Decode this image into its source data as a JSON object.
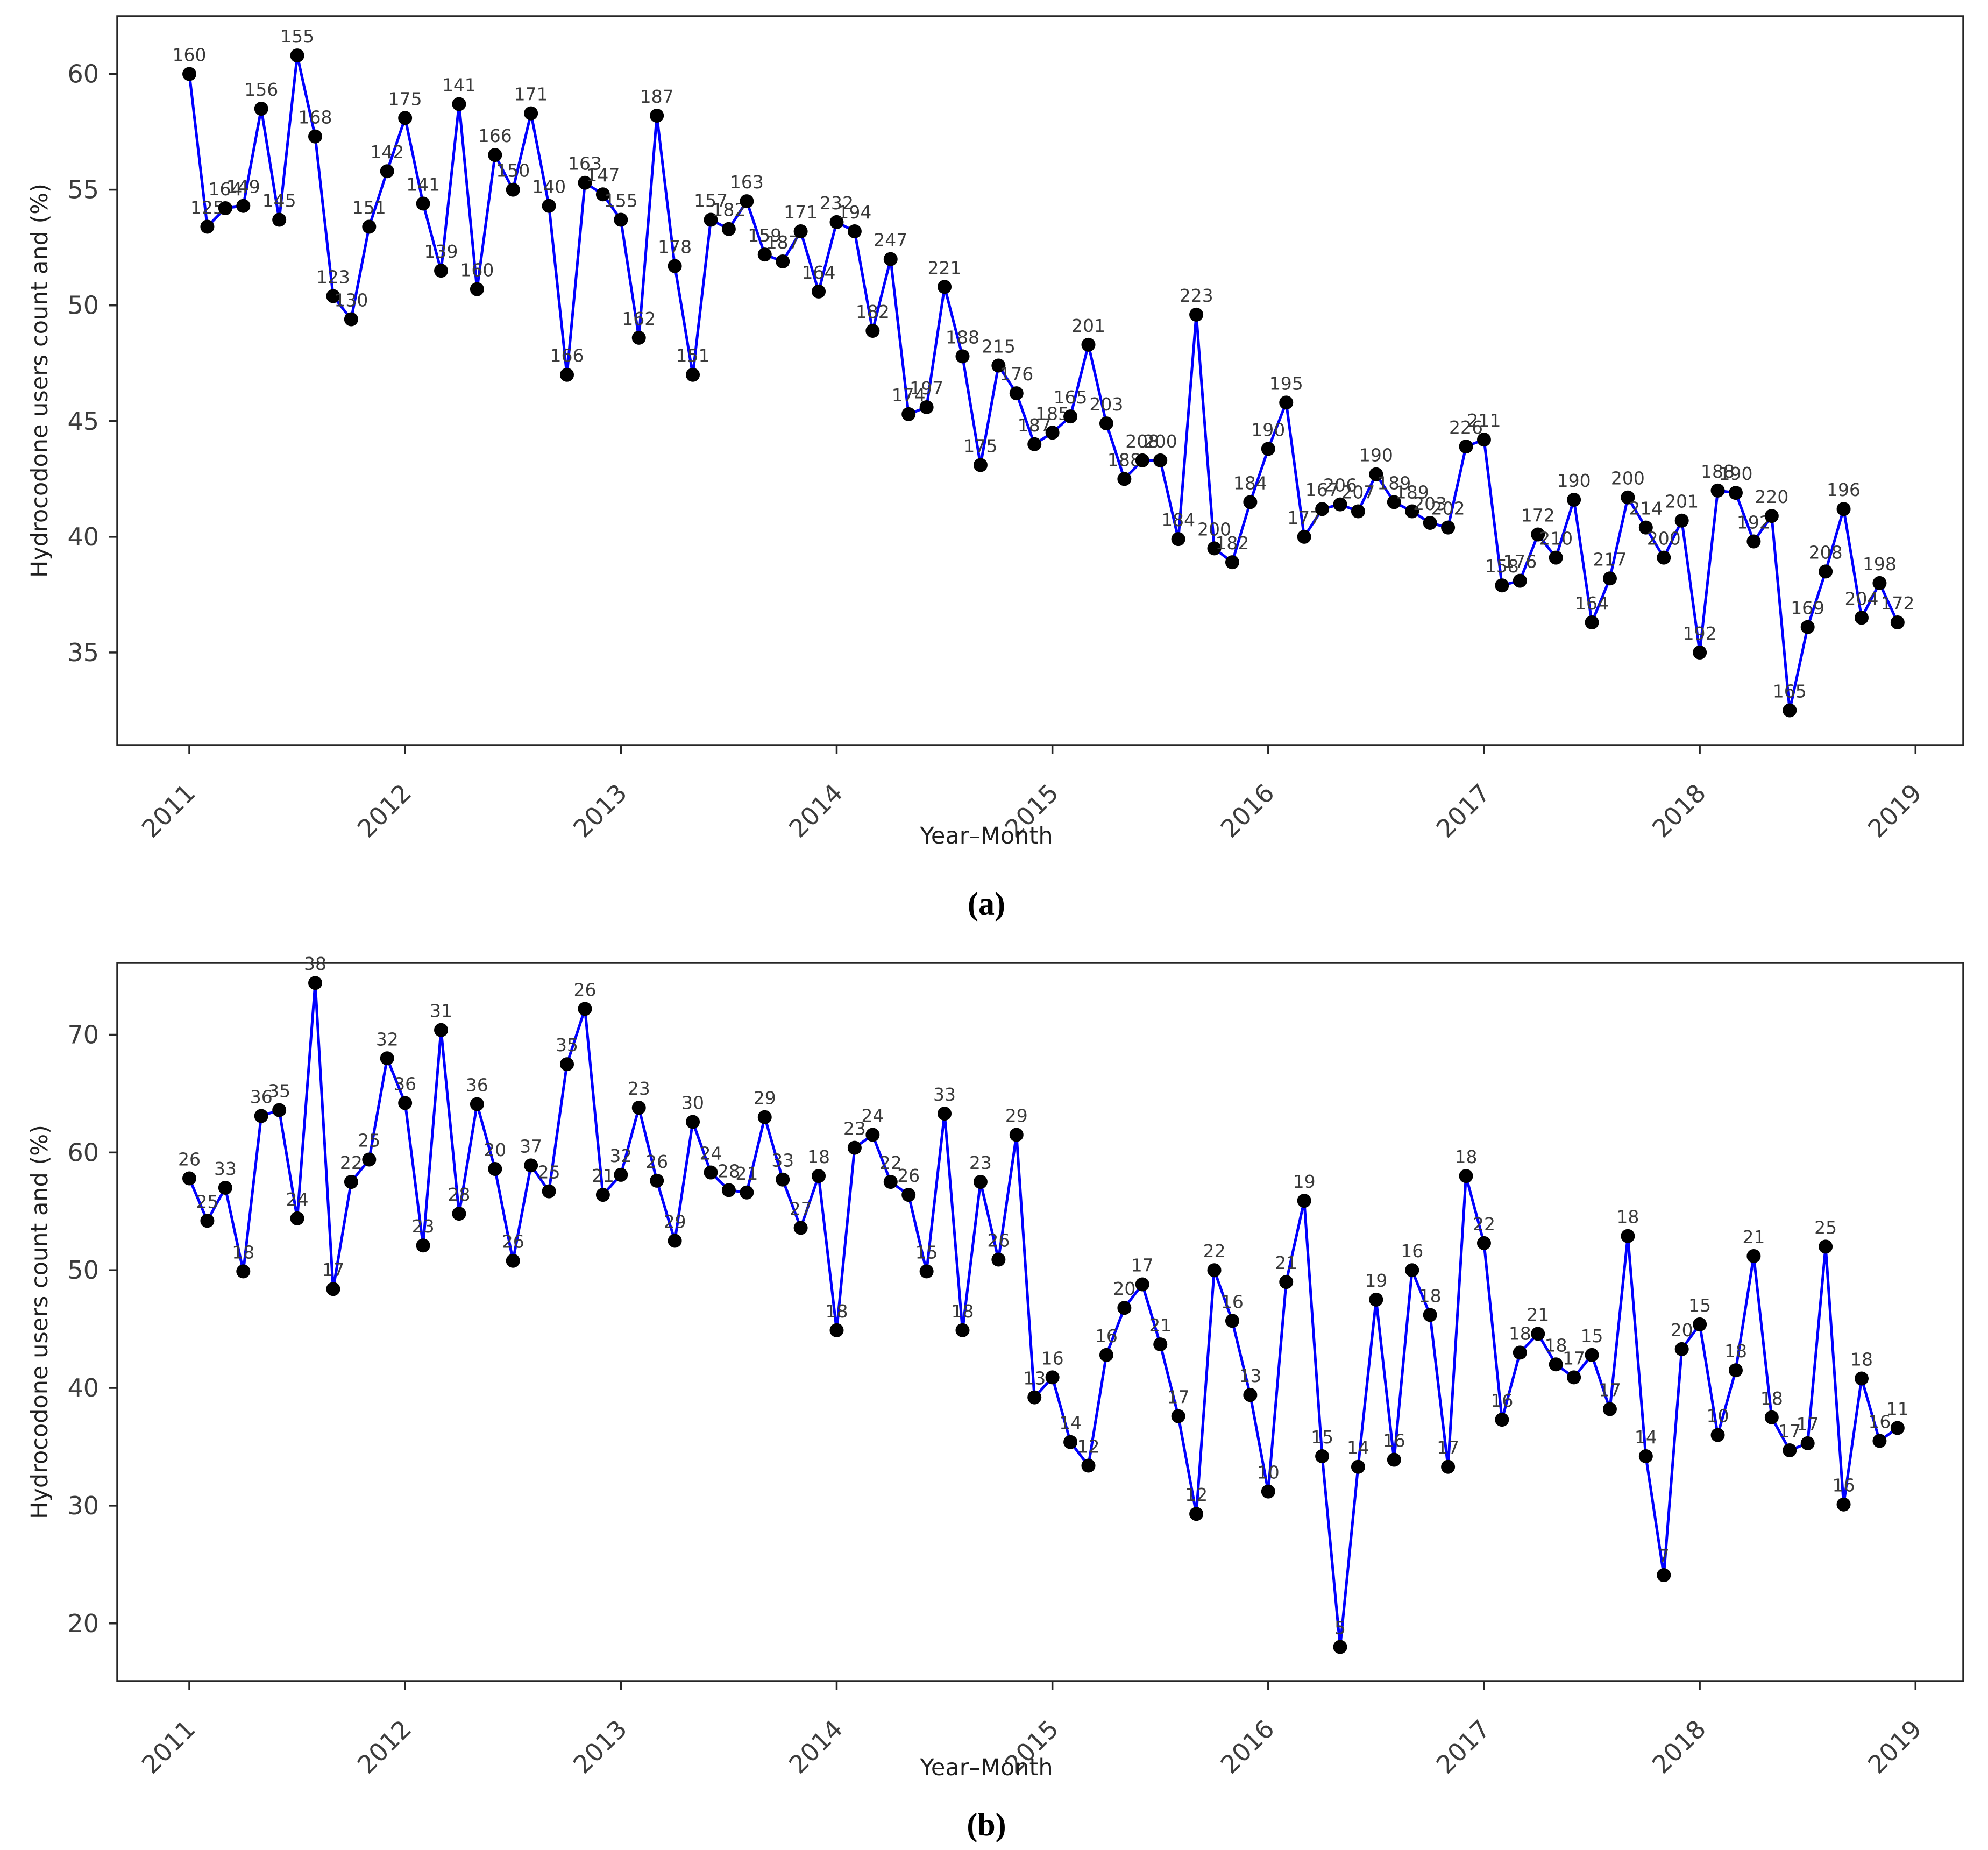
{
  "figure": {
    "background": "#ffffff",
    "line_color": "#0000ff",
    "marker_color": "#000000",
    "spine_color": "#262626",
    "tick_text_color": "#3c3c3c"
  },
  "chart_data": [
    {
      "id": "a",
      "type": "line",
      "caption": "(a)",
      "xlabel": "Year–Month",
      "ylabel": "Hydrocodone users count and (%)",
      "legend": "none",
      "grid": false,
      "x_tick_labels": [
        "2011",
        "2012",
        "2013",
        "2014",
        "2015",
        "2016",
        "2017",
        "2018",
        "2019"
      ],
      "y_tick_labels": [
        60,
        55,
        50,
        45,
        40,
        35
      ],
      "ylim": [
        31.0,
        62.5
      ],
      "x_start_year": 2011,
      "months_per_point": 1,
      "points_label_value": [
        [
          "160",
          60.0
        ],
        [
          "125",
          53.4
        ],
        [
          "164",
          54.2
        ],
        [
          "149",
          54.3
        ],
        [
          "156",
          58.5
        ],
        [
          "145",
          53.7
        ],
        [
          "155",
          60.8
        ],
        [
          "168",
          57.3
        ],
        [
          "123",
          50.4
        ],
        [
          "130",
          49.4
        ],
        [
          "151",
          53.4
        ],
        [
          "142",
          55.8
        ],
        [
          "175",
          58.1
        ],
        [
          "141",
          54.4
        ],
        [
          "139",
          51.5
        ],
        [
          "141",
          58.7
        ],
        [
          "160",
          50.7
        ],
        [
          "166",
          56.5
        ],
        [
          "150",
          55.0
        ],
        [
          "171",
          58.3
        ],
        [
          "140",
          54.3
        ],
        [
          "166",
          47.0
        ],
        [
          "163",
          55.3
        ],
        [
          "147",
          54.8
        ],
        [
          "155",
          53.7
        ],
        [
          "162",
          48.6
        ],
        [
          "187",
          58.2
        ],
        [
          "178",
          51.7
        ],
        [
          "151",
          47.0
        ],
        [
          "157",
          53.7
        ],
        [
          "182",
          53.3
        ],
        [
          "163",
          54.5
        ],
        [
          "159",
          52.2
        ],
        [
          "187",
          51.9
        ],
        [
          "171",
          53.2
        ],
        [
          "164",
          50.6
        ],
        [
          "232",
          53.6
        ],
        [
          "194",
          53.2
        ],
        [
          "182",
          48.9
        ],
        [
          "247",
          52.0
        ],
        [
          "174",
          45.3
        ],
        [
          "197",
          45.6
        ],
        [
          "221",
          50.8
        ],
        [
          "188",
          47.8
        ],
        [
          "175",
          43.1
        ],
        [
          "215",
          47.4
        ],
        [
          "176",
          46.2
        ],
        [
          "187",
          44.0
        ],
        [
          "185",
          44.5
        ],
        [
          "165",
          45.2
        ],
        [
          "201",
          48.3
        ],
        [
          "203",
          44.9
        ],
        [
          "188",
          42.5
        ],
        [
          "208",
          43.3
        ],
        [
          "200",
          43.3
        ],
        [
          "184",
          39.9
        ],
        [
          "223",
          49.6
        ],
        [
          "200",
          39.5
        ],
        [
          "182",
          38.9
        ],
        [
          "184",
          41.5
        ],
        [
          "190",
          43.8
        ],
        [
          "195",
          45.8
        ],
        [
          "177",
          40.0
        ],
        [
          "167",
          41.2
        ],
        [
          "206",
          41.4
        ],
        [
          "207",
          41.1
        ],
        [
          "190",
          42.7
        ],
        [
          "189",
          41.5
        ],
        [
          "189",
          41.1
        ],
        [
          "203",
          40.6
        ],
        [
          "202",
          40.4
        ],
        [
          "226",
          43.9
        ],
        [
          "211",
          44.2
        ],
        [
          "158",
          37.9
        ],
        [
          "176",
          38.1
        ],
        [
          "172",
          40.1
        ],
        [
          "210",
          39.1
        ],
        [
          "190",
          41.6
        ],
        [
          "164",
          36.3
        ],
        [
          "217",
          38.2
        ],
        [
          "200",
          41.7
        ],
        [
          "214",
          40.4
        ],
        [
          "200",
          39.1
        ],
        [
          "201",
          40.7
        ],
        [
          "192",
          35.0
        ],
        [
          "188",
          42.0
        ],
        [
          "190",
          41.9
        ],
        [
          "192",
          39.8
        ],
        [
          "220",
          40.9
        ],
        [
          "165",
          32.5
        ],
        [
          "169",
          36.1
        ],
        [
          "208",
          38.5
        ],
        [
          "196",
          41.2
        ],
        [
          "204",
          36.5
        ],
        [
          "198",
          38.0
        ],
        [
          "172",
          36.3
        ]
      ]
    },
    {
      "id": "b",
      "type": "line",
      "caption": "(b)",
      "xlabel": "Year–Month",
      "ylabel": "Hydrocodone users count and (%)",
      "legend": "none",
      "grid": false,
      "x_tick_labels": [
        "2011",
        "2012",
        "2013",
        "2014",
        "2015",
        "2016",
        "2017",
        "2018",
        "2019"
      ],
      "y_tick_labels": [
        70,
        60,
        50,
        40,
        30,
        20
      ],
      "ylim": [
        15.1,
        76.1
      ],
      "x_start_year": 2011,
      "months_per_point": 1,
      "points_label_value": [
        [
          "26",
          57.8
        ],
        [
          "25",
          54.2
        ],
        [
          "33",
          57.0
        ],
        [
          "18",
          49.9
        ],
        [
          "36",
          63.1
        ],
        [
          "35",
          63.6
        ],
        [
          "24",
          54.4
        ],
        [
          "38",
          74.4
        ],
        [
          "17",
          48.4
        ],
        [
          "22",
          57.5
        ],
        [
          "25",
          59.4
        ],
        [
          "32",
          68.0
        ],
        [
          "36",
          64.2
        ],
        [
          "23",
          52.1
        ],
        [
          "31",
          70.4
        ],
        [
          "28",
          54.8
        ],
        [
          "36",
          64.1
        ],
        [
          "20",
          58.6
        ],
        [
          "26",
          50.8
        ],
        [
          "37",
          58.9
        ],
        [
          "25",
          56.7
        ],
        [
          "35",
          67.5
        ],
        [
          "26",
          72.2
        ],
        [
          "21",
          56.4
        ],
        [
          "32",
          58.1
        ],
        [
          "23",
          63.8
        ],
        [
          "26",
          57.6
        ],
        [
          "29",
          52.5
        ],
        [
          "30",
          62.6
        ],
        [
          "24",
          58.3
        ],
        [
          "28",
          56.8
        ],
        [
          "21",
          56.6
        ],
        [
          "29",
          63.0
        ],
        [
          "33",
          57.7
        ],
        [
          "27",
          53.6
        ],
        [
          "18",
          58.0
        ],
        [
          "18",
          44.9
        ],
        [
          "23",
          60.4
        ],
        [
          "24",
          61.5
        ],
        [
          "22",
          57.5
        ],
        [
          "26",
          56.4
        ],
        [
          "15",
          49.9
        ],
        [
          "33",
          63.3
        ],
        [
          "18",
          44.9
        ],
        [
          "23",
          57.5
        ],
        [
          "26",
          50.9
        ],
        [
          "29",
          61.5
        ],
        [
          "13",
          39.2
        ],
        [
          "16",
          40.9
        ],
        [
          "14",
          35.4
        ],
        [
          "12",
          33.4
        ],
        [
          "16",
          42.8
        ],
        [
          "20",
          46.8
        ],
        [
          "17",
          48.8
        ],
        [
          "21",
          43.7
        ],
        [
          "17",
          37.6
        ],
        [
          "12",
          29.3
        ],
        [
          "22",
          50.0
        ],
        [
          "16",
          45.7
        ],
        [
          "13",
          39.4
        ],
        [
          "10",
          31.2
        ],
        [
          "21",
          49.0
        ],
        [
          "19",
          55.9
        ],
        [
          "15",
          34.2
        ],
        [
          "5",
          18.0
        ],
        [
          "14",
          33.3
        ],
        [
          "19",
          47.5
        ],
        [
          "16",
          33.9
        ],
        [
          "16",
          50.0
        ],
        [
          "18",
          46.2
        ],
        [
          "17",
          33.3
        ],
        [
          "18",
          58.0
        ],
        [
          "22",
          52.3
        ],
        [
          "16",
          37.3
        ],
        [
          "18",
          43.0
        ],
        [
          "21",
          44.6
        ],
        [
          "18",
          42.0
        ],
        [
          "17",
          40.9
        ],
        [
          "15",
          42.8
        ],
        [
          "17",
          38.2
        ],
        [
          "18",
          52.9
        ],
        [
          "14",
          34.2
        ],
        [
          "7",
          24.1
        ],
        [
          "20",
          43.3
        ],
        [
          "15",
          45.4
        ],
        [
          "10",
          36.0
        ],
        [
          "18",
          41.5
        ],
        [
          "21",
          51.2
        ],
        [
          "18",
          37.5
        ],
        [
          "17",
          34.7
        ],
        [
          "17",
          35.3
        ],
        [
          "25",
          52.0
        ],
        [
          "16",
          30.1
        ],
        [
          "18",
          40.8
        ],
        [
          "16",
          35.5
        ],
        [
          "11",
          36.6
        ]
      ]
    }
  ]
}
